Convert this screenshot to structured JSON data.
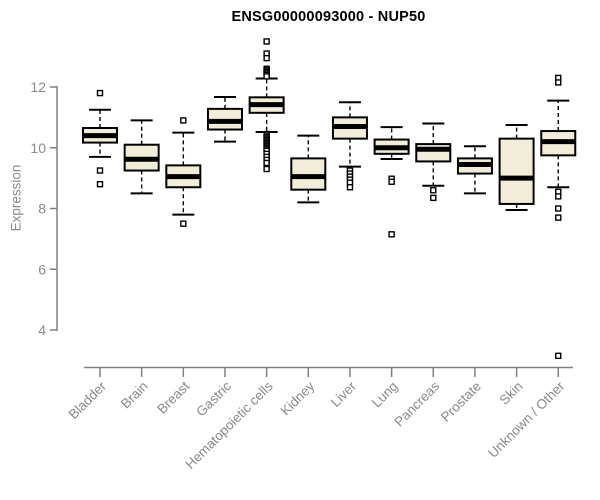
{
  "chart_data": {
    "type": "boxplot",
    "title": "ENSG00000093000 - NUP50",
    "ylabel": "Expression",
    "xlabel": "",
    "ylim": [
      4,
      12
    ],
    "yticks": [
      4,
      6,
      8,
      10,
      12
    ],
    "grid": false,
    "legend": "none",
    "categories": [
      "Bladder",
      "Brain",
      "Breast",
      "Gastric",
      "Hematopoietic cells",
      "Kidney",
      "Liver",
      "Lung",
      "Pancreas",
      "Prostate",
      "Skin",
      "Unknown / Other"
    ],
    "series": [
      {
        "category": "Bladder",
        "whisker_low": 9.7,
        "q1": 10.17,
        "median": 10.4,
        "q3": 10.65,
        "whisker_high": 11.25,
        "outliers": [
          11.8,
          9.25,
          8.8
        ]
      },
      {
        "category": "Brain",
        "whisker_low": 8.5,
        "q1": 9.25,
        "median": 9.62,
        "q3": 10.1,
        "whisker_high": 10.9,
        "outliers": []
      },
      {
        "category": "Breast",
        "whisker_low": 7.8,
        "q1": 8.7,
        "median": 9.05,
        "q3": 9.42,
        "whisker_high": 10.5,
        "outliers": [
          10.9,
          7.5
        ]
      },
      {
        "category": "Gastric",
        "whisker_low": 10.2,
        "q1": 10.6,
        "median": 10.87,
        "q3": 11.28,
        "whisker_high": 11.67,
        "outliers": []
      },
      {
        "category": "Hematopoietic cells",
        "whisker_low": 10.52,
        "q1": 11.15,
        "median": 11.42,
        "q3": 11.66,
        "whisker_high": 12.28,
        "outliers": [
          13.5,
          13.1,
          12.95,
          12.6,
          12.55,
          12.5,
          12.45,
          12.4,
          12.35,
          10.45,
          10.4,
          10.35,
          10.3,
          10.25,
          10.2,
          10.15,
          10.1,
          10.05,
          10.0,
          9.95,
          9.9,
          9.8,
          9.7,
          9.6,
          9.5,
          9.3
        ]
      },
      {
        "category": "Kidney",
        "whisker_low": 8.2,
        "q1": 8.62,
        "median": 9.05,
        "q3": 9.65,
        "whisker_high": 10.4,
        "outliers": []
      },
      {
        "category": "Liver",
        "whisker_low": 9.38,
        "q1": 10.3,
        "median": 10.7,
        "q3": 11.0,
        "whisker_high": 11.5,
        "outliers": [
          9.25,
          9.15,
          9.05,
          8.95,
          8.85,
          8.7
        ]
      },
      {
        "category": "Lung",
        "whisker_low": 9.63,
        "q1": 9.8,
        "median": 10.0,
        "q3": 10.27,
        "whisker_high": 10.68,
        "outliers": [
          8.98,
          8.88,
          7.15
        ]
      },
      {
        "category": "Pancreas",
        "whisker_low": 8.75,
        "q1": 9.55,
        "median": 9.95,
        "q3": 10.12,
        "whisker_high": 10.8,
        "outliers": [
          8.6,
          8.35
        ]
      },
      {
        "category": "Prostate",
        "whisker_low": 8.5,
        "q1": 9.15,
        "median": 9.45,
        "q3": 9.65,
        "whisker_high": 10.05,
        "outliers": []
      },
      {
        "category": "Skin",
        "whisker_low": 7.95,
        "q1": 8.15,
        "median": 9.0,
        "q3": 10.3,
        "whisker_high": 10.75,
        "outliers": []
      },
      {
        "category": "Unknown / Other",
        "whisker_low": 8.7,
        "q1": 9.75,
        "median": 10.2,
        "q3": 10.55,
        "whisker_high": 11.55,
        "outliers": [
          12.3,
          12.15,
          8.55,
          8.4,
          8.0,
          7.7,
          3.15
        ]
      }
    ],
    "colors": {
      "box_fill": "#f2edd8",
      "box_stroke": "#000000",
      "median": "#000000",
      "whisker": "#000000",
      "outlier_fill": "#ffffff",
      "axis": "#808080",
      "tick_label": "#8a8a8a",
      "title": "#000000",
      "background": "#ffffff"
    }
  }
}
